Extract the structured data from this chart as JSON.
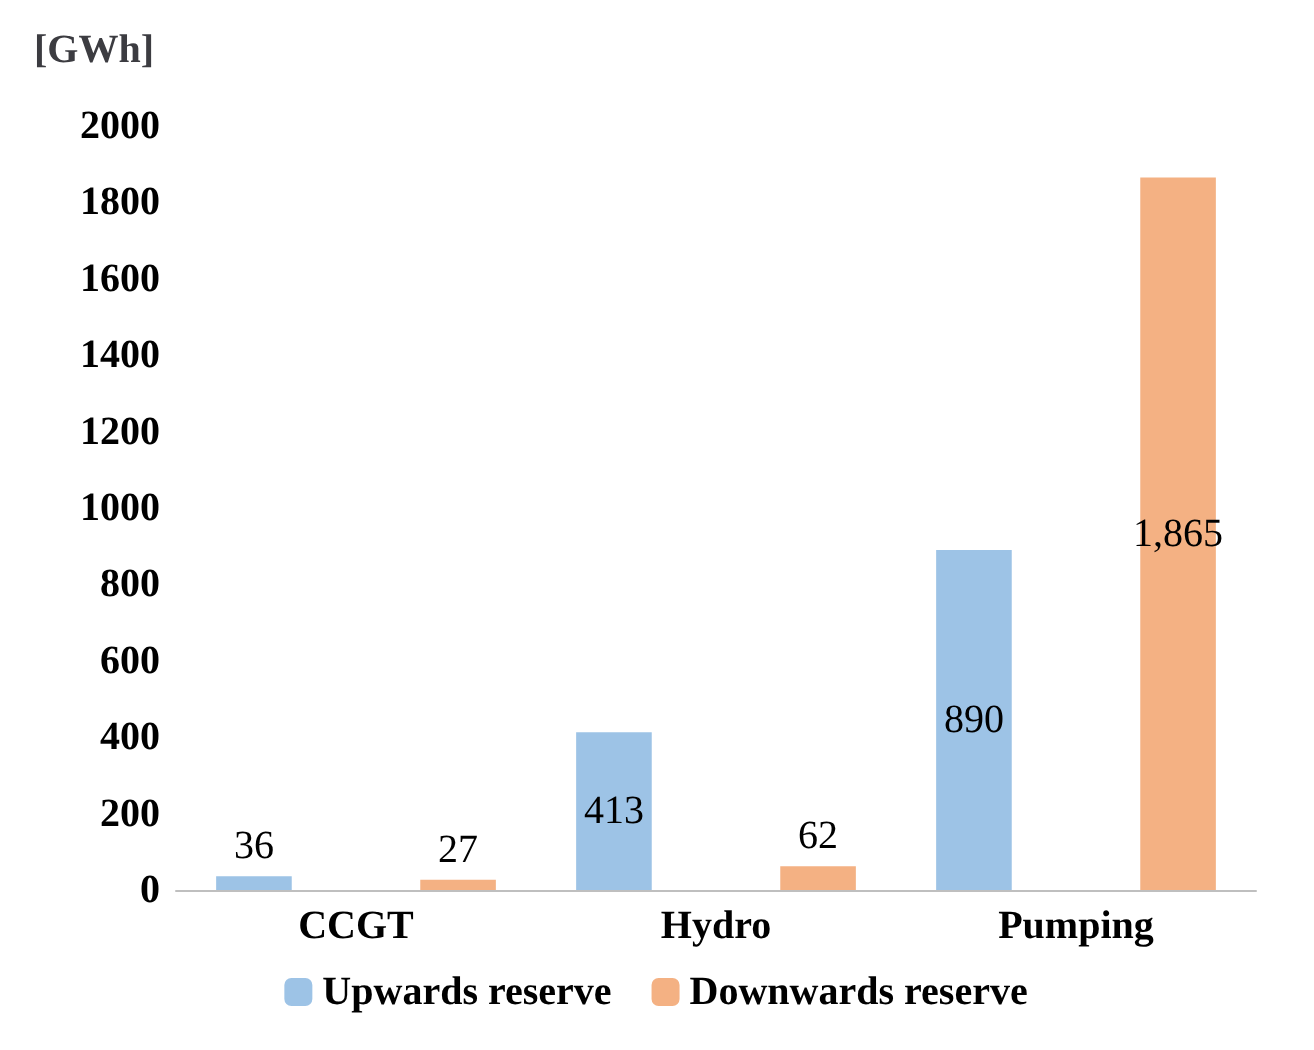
{
  "chart_data": {
    "type": "bar",
    "ylabel": "[GWh]",
    "categories": [
      "CCGT",
      "Hydro",
      "Pumping"
    ],
    "series": [
      {
        "name": "Upwards reserve",
        "color": "#9dc3e6",
        "values": [
          36,
          413,
          890
        ],
        "value_labels": [
          "36",
          "413",
          "890"
        ]
      },
      {
        "name": "Downwards reserve",
        "color": "#f4b183",
        "values": [
          27,
          62,
          1865
        ],
        "value_labels": [
          "27",
          "62",
          "1,865"
        ]
      }
    ],
    "ylim": [
      0,
      2000
    ],
    "yticks": [
      0,
      200,
      400,
      600,
      800,
      1000,
      1200,
      1400,
      1600,
      1800,
      2000
    ],
    "grid": false,
    "legend": "bottom"
  }
}
